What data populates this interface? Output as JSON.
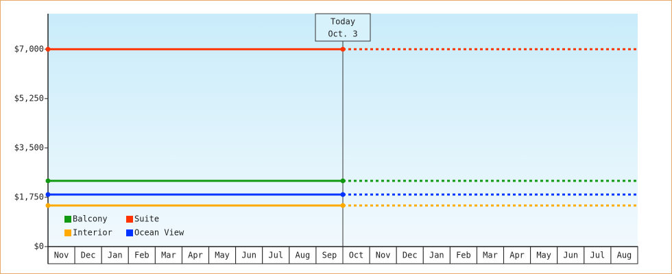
{
  "chart_data": {
    "type": "line",
    "categories": [
      "Nov",
      "Dec",
      "Jan",
      "Feb",
      "Mar",
      "Apr",
      "May",
      "Jun",
      "Jul",
      "Aug",
      "Sep",
      "Oct",
      "Nov",
      "Dec",
      "Jan",
      "Feb",
      "Mar",
      "Apr",
      "May",
      "Jun",
      "Jul",
      "Aug"
    ],
    "series": [
      {
        "name": "Balcony",
        "color": "#119911",
        "values": [
          2333,
          2333,
          2333,
          2333,
          2333,
          2333,
          2333,
          2333,
          2333,
          2333,
          2333,
          2333,
          2333,
          2333,
          2333,
          2333,
          2333,
          2333,
          2333,
          2333,
          2333,
          2333
        ]
      },
      {
        "name": "Suite",
        "color": "#ff3300",
        "values": [
          7000,
          7000,
          7000,
          7000,
          7000,
          7000,
          7000,
          7000,
          7000,
          7000,
          7000,
          7000,
          7000,
          7000,
          7000,
          7000,
          7000,
          7000,
          7000,
          7000,
          7000,
          7000
        ]
      },
      {
        "name": "Interior",
        "color": "#ffaa00",
        "values": [
          1458,
          1458,
          1458,
          1458,
          1458,
          1458,
          1458,
          1458,
          1458,
          1458,
          1458,
          1458,
          1458,
          1458,
          1458,
          1458,
          1458,
          1458,
          1458,
          1458,
          1458,
          1458
        ]
      },
      {
        "name": "Ocean View",
        "color": "#0033ff",
        "values": [
          1847,
          1847,
          1847,
          1847,
          1847,
          1847,
          1847,
          1847,
          1847,
          1847,
          1847,
          1847,
          1847,
          1847,
          1847,
          1847,
          1847,
          1847,
          1847,
          1847,
          1847,
          1847
        ]
      }
    ],
    "ylim": [
      0,
      8260
    ],
    "yticks": [
      {
        "value": 0,
        "label": "$0"
      },
      {
        "value": 1750,
        "label": "$1,750"
      },
      {
        "value": 3500,
        "label": "$3,500"
      },
      {
        "value": 5250,
        "label": "$5,250"
      },
      {
        "value": 7000,
        "label": "$7,000"
      }
    ],
    "annotation": {
      "label": "Today",
      "date": "Oct. 3",
      "at": "Oct"
    },
    "legend": "bottom-left"
  }
}
